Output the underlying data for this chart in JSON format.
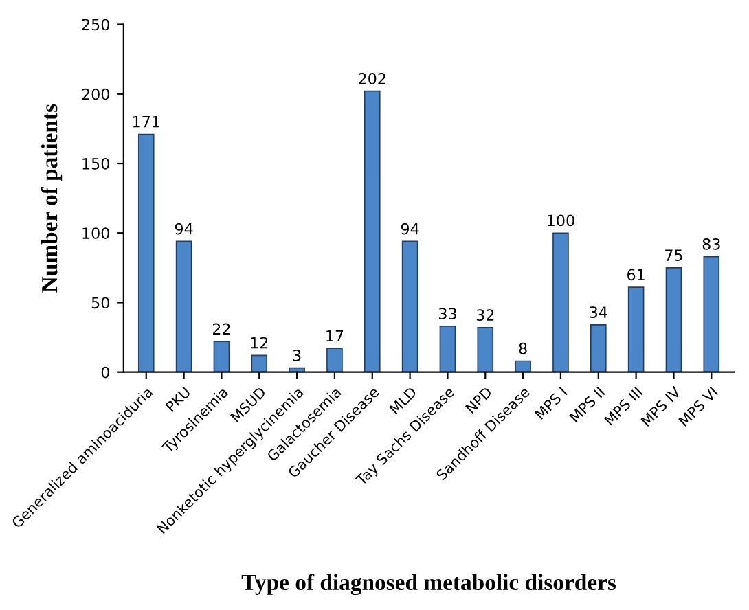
{
  "chart_data": {
    "type": "bar",
    "xlabel": "Type of diagnosed metabolic disorders",
    "ylabel": "Number of patients",
    "categories": [
      "Generalized aminoaciduria",
      "PKU",
      "Tyrosinemia",
      "MSUD",
      "Nonketotic hyperglycinemia",
      "Galactosemia",
      "Gaucher Disease",
      "MLD",
      "Tay Sachs Disease",
      "NPD",
      "Sandhoff Disease",
      "MPS I",
      "MPS II",
      "MPS III",
      "MPS IV",
      "MPS VI"
    ],
    "values": [
      171,
      94,
      22,
      12,
      3,
      17,
      202,
      94,
      33,
      32,
      8,
      100,
      34,
      61,
      75,
      83
    ],
    "color": "#4a86c8",
    "ylim": [
      0,
      250
    ],
    "yticks": [
      0,
      50,
      100,
      150,
      200,
      250
    ],
    "grid": false,
    "data_labels": true,
    "legend": false
  }
}
